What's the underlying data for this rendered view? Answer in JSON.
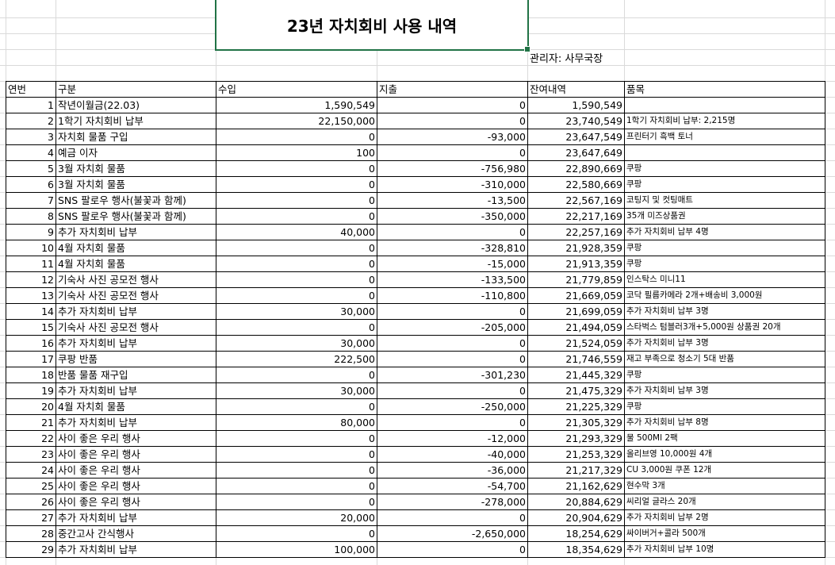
{
  "title": "23년 자치회비 사용 내역",
  "manager": "관리자: 사무국장",
  "headers": [
    "연번",
    "구분",
    "수입",
    "지출",
    "잔여내역",
    "품목"
  ],
  "rows": [
    [
      "1",
      "작년이월금(22.03)",
      "1,590,549",
      "0",
      "1,590,549",
      ""
    ],
    [
      "2",
      "1학기 자치회비 납부",
      "22,150,000",
      "0",
      "23,740,549",
      "1학기 자치회비 납부: 2,215명"
    ],
    [
      "3",
      "자치회 물품 구입",
      "0",
      "-93,000",
      "23,647,549",
      "프린터기 흑백 토너"
    ],
    [
      "4",
      "예금 이자",
      "100",
      "0",
      "23,647,649",
      ""
    ],
    [
      "5",
      "3월 자치회 물품",
      "0",
      "-756,980",
      "22,890,669",
      "쿠팡"
    ],
    [
      "6",
      "3월 자치회 물품",
      "0",
      "-310,000",
      "22,580,669",
      "쿠팡"
    ],
    [
      "7",
      "SNS 팔로우 행사(불꽃과 함께)",
      "0",
      "-13,500",
      "22,567,169",
      "코팅지 및 컷팅매트"
    ],
    [
      "8",
      "SNS 팔로우 행사(불꽃과 함께)",
      "0",
      "-350,000",
      "22,217,169",
      "35개 미즈상품권"
    ],
    [
      "9",
      "추가 자치회비 납부",
      "40,000",
      "0",
      "22,257,169",
      "추가 자치회비 납부 4명"
    ],
    [
      "10",
      "4월 자치회 물품",
      "0",
      "-328,810",
      "21,928,359",
      "쿠팡"
    ],
    [
      "11",
      "4월 자치회 물품",
      "0",
      "-15,000",
      "21,913,359",
      "쿠팡"
    ],
    [
      "12",
      "기숙사 사진 공모전 행사",
      "0",
      "-133,500",
      "21,779,859",
      "인스탁스 미니11"
    ],
    [
      "13",
      "기숙사 사진 공모전 행사",
      "0",
      "-110,800",
      "21,669,059",
      "코닥 필름카메라 2개+배송비 3,000원"
    ],
    [
      "14",
      "추가 자치회비 납부",
      "30,000",
      "0",
      "21,699,059",
      "추가 자치회비 납부 3명"
    ],
    [
      "15",
      "기숙사 사진 공모전 행사",
      "0",
      "-205,000",
      "21,494,059",
      "스타벅스 텀블러3개+5,000원 상품권 20개"
    ],
    [
      "16",
      "추가 자치회비 납부",
      "30,000",
      "0",
      "21,524,059",
      "추가 자치회비 납부 3명"
    ],
    [
      "17",
      "쿠팡 반품",
      "222,500",
      "0",
      "21,746,559",
      "재고 부족으로 청소기 5대 반품"
    ],
    [
      "18",
      "반품 물품 재구입",
      "0",
      "-301,230",
      "21,445,329",
      "쿠팡"
    ],
    [
      "19",
      "추가 자치회비 납부",
      "30,000",
      "0",
      "21,475,329",
      "추가 자치회비 납부 3명"
    ],
    [
      "20",
      "4월 자치회 물품",
      "0",
      "-250,000",
      "21,225,329",
      "쿠팡"
    ],
    [
      "21",
      "추가 자치회비 납부",
      "80,000",
      "0",
      "21,305,329",
      "추가 자치회비 납부 8명"
    ],
    [
      "22",
      "사이 좋은 우리 행사",
      "0",
      "-12,000",
      "21,293,329",
      "물 500Ml 2팩"
    ],
    [
      "23",
      "사이 좋은 우리 행사",
      "0",
      "-40,000",
      "21,253,329",
      "올리브영 10,000원 4개"
    ],
    [
      "24",
      "사이 좋은 우리 행사",
      "0",
      "-36,000",
      "21,217,329",
      "CU 3,000원 쿠폰 12개"
    ],
    [
      "25",
      "사이 좋은 우리 행사",
      "0",
      "-54,700",
      "21,162,629",
      "현수막 3개"
    ],
    [
      "26",
      "사이 좋은 우리 행사",
      "0",
      "-278,000",
      "20,884,629",
      "씨리얼 글라스 20개"
    ],
    [
      "27",
      "추가 자치회비 납부",
      "20,000",
      "0",
      "20,904,629",
      "추가 자치회비 납부 2명"
    ],
    [
      "28",
      "중간고사 간식행사",
      "0",
      "-2,650,000",
      "18,254,629",
      "싸이버거+콜라 500개"
    ],
    [
      "29",
      "추가 자치회비 납부",
      "100,000",
      "0",
      "18,354,629",
      "추가 자치회비 납부 10명"
    ]
  ],
  "colors": {
    "selection": "#217346",
    "gridline": "#dadada"
  }
}
